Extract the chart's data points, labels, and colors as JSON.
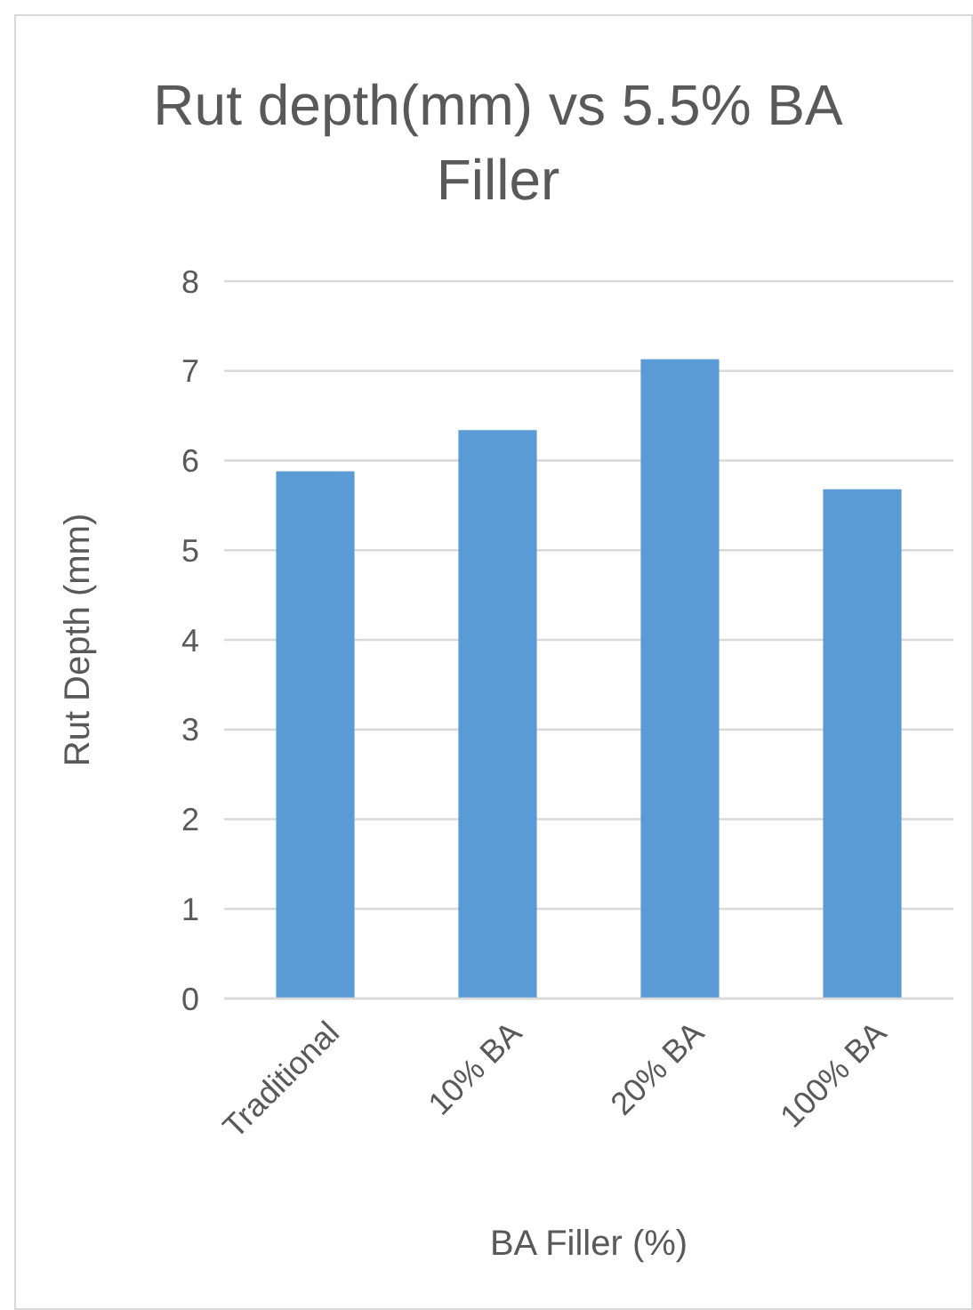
{
  "chart_data": {
    "type": "bar",
    "title": "Rut depth(mm) vs 5.5% BA Filler",
    "xlabel": "BA Filler (%)",
    "ylabel": "Rut Depth (mm)",
    "categories": [
      "Traditional",
      "10% BA",
      "20% BA",
      "100% BA"
    ],
    "values": [
      5.88,
      6.34,
      7.13,
      5.68
    ],
    "color": "#5b9bd5",
    "ylim": [
      0,
      8
    ],
    "yticks": [
      0,
      1,
      2,
      3,
      4,
      5,
      6,
      7,
      8
    ],
    "grid": "y"
  }
}
